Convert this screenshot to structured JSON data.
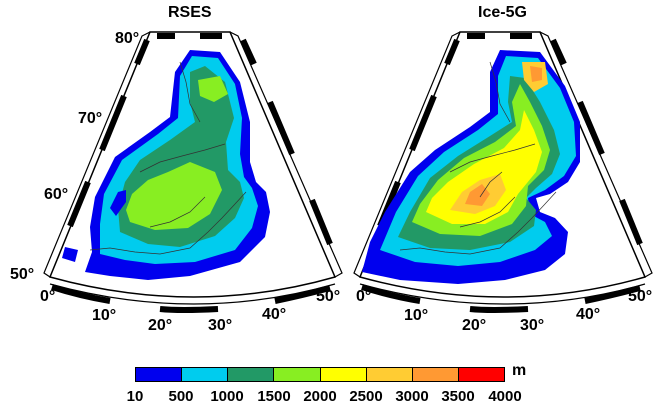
{
  "panels": [
    {
      "title": "RSES",
      "lat_labels": [
        "80°",
        "70°",
        "60°",
        "50°"
      ],
      "lon_labels": [
        "0°",
        "10°",
        "20°",
        "30°",
        "40°",
        "50°"
      ]
    },
    {
      "title": "Ice-5G",
      "lat_labels": [
        "80°",
        "70°",
        "60°",
        "50°"
      ],
      "lon_labels": [
        "0°",
        "10°",
        "20°",
        "30°",
        "40°",
        "50°"
      ]
    }
  ],
  "legend": {
    "unit": "m",
    "ticks": [
      "10",
      "500",
      "1000",
      "1500",
      "2000",
      "2500",
      "3000",
      "3500",
      "4000"
    ],
    "colors": [
      "#0000ee",
      "#00ccee",
      "#229966",
      "#88ee22",
      "#ffff00",
      "#ffcc33",
      "#ff9933",
      "#ff6633",
      "#ff0000"
    ]
  }
}
